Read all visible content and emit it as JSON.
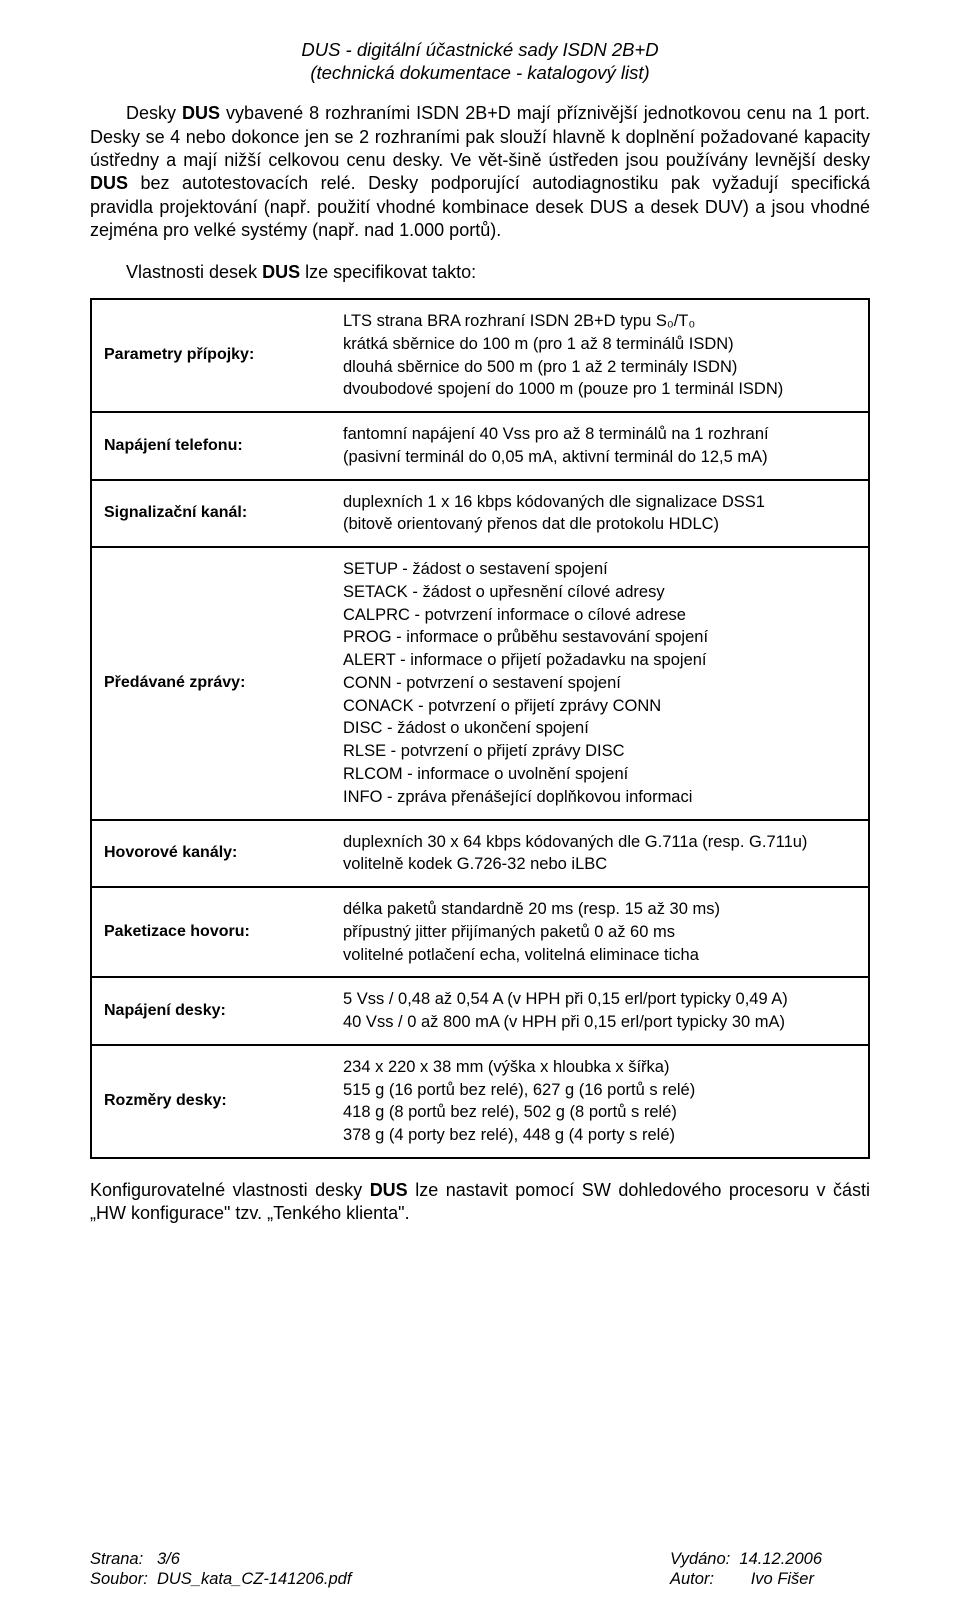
{
  "title_line1": "DUS - digitální účastnické sady ISDN 2B+D",
  "title_line2": "(technická dokumentace - katalogový list)",
  "para1_pre": "Desky ",
  "para1_bold": "DUS",
  "para1_mid1": " vybavené 8 rozhraními ISDN 2B+D mají příznivější jednotkovou cenu na 1 port. Desky se 4 nebo dokonce jen se 2 rozhraními pak slouží hlavně k doplnění požadované kapacity ústředny a mají nižší celkovou cenu desky. Ve vět-šině ústředen jsou používány levnější desky ",
  "para1_bold2": "DUS",
  "para1_mid2": " bez autotestovacích relé. Desky podporující autodiagnostiku pak vyžadují specifická pravidla projektování (např. použití vhodné kombinace desek DUS a desek DUV) a jsou vhodné zejména pro velké systémy (např. nad 1.000 portů).",
  "para2_pre": "Vlastnosti desek ",
  "para2_bold": "DUS",
  "para2_post": " lze specifikovat takto:",
  "table": {
    "rows": [
      {
        "label": "Parametry přípojky:",
        "lines": [
          "LTS strana BRA rozhraní ISDN 2B+D typu S₀/T₀",
          "krátká sběrnice do 100 m (pro 1 až 8 terminálů ISDN)",
          "dlouhá sběrnice do 500 m (pro 1 až 2 terminály ISDN)",
          "dvoubodové spojení do 1000 m (pouze pro 1 terminál ISDN)"
        ]
      },
      {
        "label": "Napájení telefonu:",
        "lines": [
          "fantomní napájení 40 Vss pro až 8 terminálů na 1 rozhraní",
          "(pasivní terminál do 0,05 mA, aktivní terminál do 12,5 mA)"
        ]
      },
      {
        "label": "Signalizační kanál:",
        "lines": [
          "duplexních 1 x 16 kbps kódovaných dle signalizace DSS1",
          "(bitově orientovaný přenos dat dle protokolu HDLC)"
        ]
      },
      {
        "label": "Předávané zprávy:",
        "lines": [
          "SETUP - žádost o sestavení spojení",
          "SETACK - žádost o upřesnění cílové adresy",
          "CALPRC - potvrzení informace o cílové adrese",
          "PROG - informace o průběhu sestavování spojení",
          "ALERT - informace o přijetí požadavku na spojení",
          "CONN - potvrzení o sestavení spojení",
          "CONACK - potvrzení o přijetí zprávy CONN",
          "DISC - žádost o ukončení spojení",
          "RLSE - potvrzení o přijetí zprávy DISC",
          "RLCOM - informace o uvolnění spojení",
          "INFO - zpráva přenášející doplňkovou informaci"
        ]
      },
      {
        "label": "Hovorové kanály:",
        "lines": [
          "duplexních 30 x 64 kbps kódovaných dle G.711a (resp. G.711u)",
          "volitelně kodek G.726-32 nebo iLBC"
        ]
      },
      {
        "label": "Paketizace hovoru:",
        "lines": [
          "délka paketů standardně 20 ms (resp. 15 až 30 ms)",
          "přípustný jitter přijímaných paketů 0 až 60 ms",
          "volitelné potlačení echa, volitelná eliminace ticha"
        ]
      },
      {
        "label": "Napájení desky:",
        "lines": [
          "5 Vss / 0,48 až 0,54 A (v HPH při 0,15 erl/port typicky 0,49 A)",
          "40 Vss / 0 až 800 mA (v HPH při 0,15 erl/port typicky 30 mA)"
        ]
      },
      {
        "label": "Rozměry desky:",
        "lines": [
          "234 x 220 x 38 mm (výška x hloubka x šířka)",
          "515 g (16 portů bez relé), 627 g (16 portů s relé)",
          "418 g (8 portů bez relé), 502 g (8 portů s relé)",
          "378 g (4 porty bez relé), 448 g (4 porty s relé)"
        ]
      }
    ]
  },
  "para3_pre": "Konfigurovatelné vlastnosti desky ",
  "para3_bold": "DUS",
  "para3_post": " lze nastavit pomocí SW dohledového procesoru v části „HW konfigurace\" tzv. „Tenkého klienta\".",
  "footer": {
    "page_label": "Strana:",
    "page_value": "3/6",
    "file_label": "Soubor:",
    "file_value": "DUS_kata_CZ-141206.pdf",
    "date_label": "Vydáno:",
    "date_value": "14.12.2006",
    "author_label": "Autor:",
    "author_value": "Ivo Fišer"
  }
}
